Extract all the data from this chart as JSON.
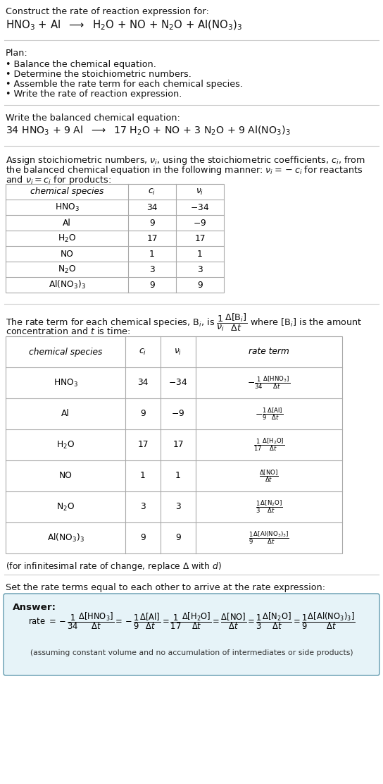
{
  "title_line1": "Construct the rate of reaction expression for:",
  "title_line2": "HNO$_3$ + Al  $\\longrightarrow$  H$_2$O + NO + N$_2$O + Al(NO$_3$)$_3$",
  "plan_header": "Plan:",
  "plan_items": [
    "• Balance the chemical equation.",
    "• Determine the stoichiometric numbers.",
    "• Assemble the rate term for each chemical species.",
    "• Write the rate of reaction expression."
  ],
  "balanced_header": "Write the balanced chemical equation:",
  "balanced_eq": "34 HNO$_3$ + 9 Al  $\\longrightarrow$  17 H$_2$O + NO + 3 N$_2$O + 9 Al(NO$_3$)$_3$",
  "stoich_intro1": "Assign stoichiometric numbers, $\\nu_i$, using the stoichiometric coefficients, $c_i$, from",
  "stoich_intro2": "the balanced chemical equation in the following manner: $\\nu_i = -c_i$ for reactants",
  "stoich_intro3": "and $\\nu_i = c_i$ for products:",
  "table1_headers": [
    "chemical species",
    "$c_i$",
    "$\\nu_i$"
  ],
  "table1_rows": [
    [
      "HNO$_3$",
      "34",
      "$-$34"
    ],
    [
      "Al",
      "9",
      "$-$9"
    ],
    [
      "H$_2$O",
      "17",
      "17"
    ],
    [
      "NO",
      "1",
      "1"
    ],
    [
      "N$_2$O",
      "3",
      "3"
    ],
    [
      "Al(NO$_3$)$_3$",
      "9",
      "9"
    ]
  ],
  "rate_intro1": "The rate term for each chemical species, B$_i$, is $\\dfrac{1}{\\nu_i}\\dfrac{\\Delta[\\mathrm{B}_i]}{\\Delta t}$ where [B$_i$] is the amount",
  "rate_intro2": "concentration and $t$ is time:",
  "table2_headers": [
    "chemical species",
    "$c_i$",
    "$\\nu_i$",
    "rate term"
  ],
  "table2_rows": [
    [
      "HNO$_3$",
      "34",
      "$-$34",
      "$-\\frac{1}{34}\\frac{\\Delta[\\mathrm{HNO_3}]}{\\Delta t}$"
    ],
    [
      "Al",
      "9",
      "$-$9",
      "$-\\frac{1}{9}\\frac{\\Delta[\\mathrm{Al}]}{\\Delta t}$"
    ],
    [
      "H$_2$O",
      "17",
      "17",
      "$\\frac{1}{17}\\frac{\\Delta[\\mathrm{H_2O}]}{\\Delta t}$"
    ],
    [
      "NO",
      "1",
      "1",
      "$\\frac{\\Delta[\\mathrm{NO}]}{\\Delta t}$"
    ],
    [
      "N$_2$O",
      "3",
      "3",
      "$\\frac{1}{3}\\frac{\\Delta[\\mathrm{N_2O}]}{\\Delta t}$"
    ],
    [
      "Al(NO$_3$)$_3$",
      "9",
      "9",
      "$\\frac{1}{9}\\frac{\\Delta[\\mathrm{Al(NO_3)_3}]}{\\Delta t}$"
    ]
  ],
  "infinitesimal_note": "(for infinitesimal rate of change, replace $\\Delta$ with $d$)",
  "set_equal_text": "Set the rate terms equal to each other to arrive at the rate expression:",
  "answer_label": "Answer:",
  "answer_rate": "rate $= -\\dfrac{1}{34}\\dfrac{\\Delta[\\mathrm{HNO_3}]}{\\Delta t} = -\\dfrac{1}{9}\\dfrac{\\Delta[\\mathrm{Al}]}{\\Delta t} = \\dfrac{1}{17}\\dfrac{\\Delta[\\mathrm{H_2O}]}{\\Delta t} = \\dfrac{\\Delta[\\mathrm{NO}]}{\\Delta t} = \\dfrac{1}{3}\\dfrac{\\Delta[\\mathrm{N_2O}]}{\\Delta t} = \\dfrac{1}{9}\\dfrac{\\Delta[\\mathrm{Al(NO_3)_3}]}{\\Delta t}$",
  "answer_note": "(assuming constant volume and no accumulation of intermediates or side products)",
  "bg_color": "#ffffff",
  "answer_bg_color": "#e6f3f8",
  "answer_border_color": "#7aaabb",
  "table_border_color": "#aaaaaa",
  "separator_color": "#cccccc"
}
